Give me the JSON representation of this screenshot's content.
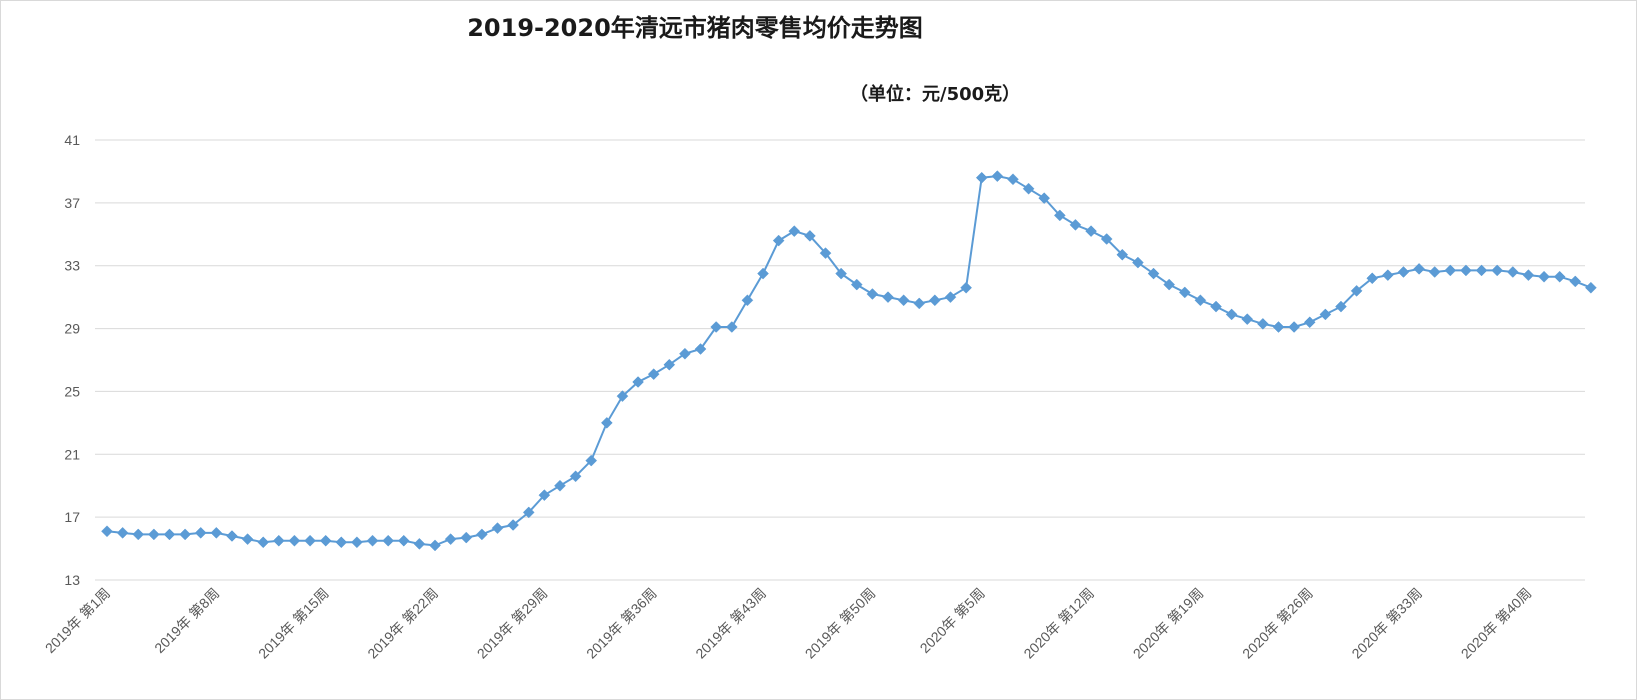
{
  "chart_data": {
    "type": "line",
    "title": "2019-2020年清远市猪肉零售均价走势图",
    "subtitle": "（单位：元/500克）",
    "ylim": [
      13,
      41
    ],
    "y_ticks": [
      "13",
      "17",
      "21",
      "25",
      "29",
      "33",
      "37",
      "41"
    ],
    "x_tick_labels": [
      "2019年 第1周",
      "2019年 第8周",
      "2019年 第15周",
      "2019年 第22周",
      "2019年 第29周",
      "2019年 第36周",
      "2019年 第43周",
      "2019年 第50周",
      "2020年 第5周",
      "2020年 第12周",
      "2020年 第19周",
      "2020年 第26周",
      "2020年 第33周",
      "2020年 第40周"
    ],
    "x_tick_every": 7,
    "grid": true,
    "series": [
      {
        "color": "#5b9bd5",
        "values": [
          16.1,
          16.0,
          15.9,
          15.9,
          15.9,
          15.9,
          16.0,
          16.0,
          15.8,
          15.6,
          15.4,
          15.5,
          15.5,
          15.5,
          15.5,
          15.4,
          15.4,
          15.5,
          15.5,
          15.5,
          15.3,
          15.2,
          15.6,
          15.7,
          15.9,
          16.3,
          16.5,
          17.3,
          18.4,
          19.0,
          19.6,
          20.6,
          23.0,
          24.7,
          25.6,
          26.1,
          26.7,
          27.4,
          27.7,
          29.1,
          29.1,
          30.8,
          32.5,
          34.6,
          35.2,
          34.9,
          33.8,
          32.5,
          31.8,
          31.2,
          31.0,
          30.8,
          30.6,
          30.8,
          31.0,
          31.6,
          38.6,
          38.7,
          38.5,
          37.9,
          37.3,
          36.2,
          35.6,
          35.2,
          34.7,
          33.7,
          33.2,
          32.5,
          31.8,
          31.3,
          30.8,
          30.4,
          29.9,
          29.6,
          29.3,
          29.1,
          29.1,
          29.4,
          29.9,
          30.4,
          31.4,
          32.2,
          32.4,
          32.6,
          32.8,
          32.6,
          32.7,
          32.7,
          32.7,
          32.7,
          32.6,
          32.4,
          32.3,
          32.3,
          32.0,
          31.6
        ]
      }
    ]
  }
}
